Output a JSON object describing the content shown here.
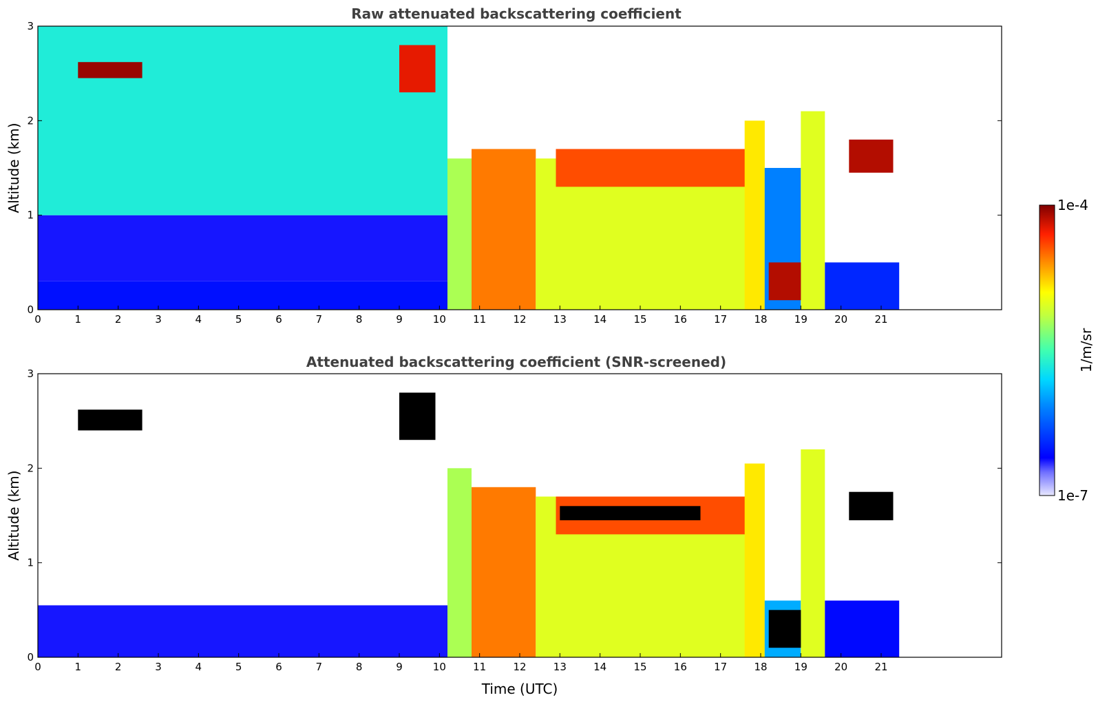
{
  "chart_data": [
    {
      "type": "heatmap",
      "title": "Raw attenuated backscattering coefficient",
      "xlabel": "",
      "ylabel": "Altitude (km)",
      "xlim": [
        0,
        24
      ],
      "ylim": [
        0,
        3
      ],
      "x_ticks": [
        "0",
        "1",
        "2",
        "3",
        "4",
        "5",
        "6",
        "7",
        "8",
        "9",
        "10",
        "11",
        "12",
        "13",
        "14",
        "15",
        "16",
        "17",
        "18",
        "19",
        "20",
        "21"
      ],
      "y_ticks": [
        "0",
        "1",
        "2",
        "3"
      ],
      "data_end_time": 21.45,
      "bands": [
        {
          "t": [
            0.0,
            10.2
          ],
          "z": [
            0.0,
            0.3
          ],
          "level": 0.15
        },
        {
          "t": [
            0.0,
            10.2
          ],
          "z": [
            0.3,
            1.0
          ],
          "level": 0.12
        },
        {
          "t": [
            0.0,
            10.2
          ],
          "z": [
            1.0,
            3.0
          ],
          "level": 0.45
        },
        {
          "t": [
            10.2,
            10.8
          ],
          "z": [
            0.0,
            1.6
          ],
          "level": 0.6
        },
        {
          "t": [
            10.8,
            12.4
          ],
          "z": [
            0.0,
            1.7
          ],
          "level": 0.82
        },
        {
          "t": [
            12.4,
            18.0
          ],
          "z": [
            0.0,
            1.6
          ],
          "level": 0.66
        },
        {
          "t": [
            12.9,
            17.9
          ],
          "z": [
            1.3,
            1.7
          ],
          "level": 0.86
        },
        {
          "t": [
            17.6,
            18.1
          ],
          "z": [
            0.0,
            2.0
          ],
          "level": 0.72
        },
        {
          "t": [
            18.1,
            19.0
          ],
          "z": [
            0.0,
            1.5
          ],
          "level": 0.3
        },
        {
          "t": [
            19.0,
            19.6
          ],
          "z": [
            0.0,
            2.1
          ],
          "level": 0.66
        },
        {
          "t": [
            19.6,
            21.45
          ],
          "z": [
            0.0,
            0.5
          ],
          "level": 0.18
        }
      ],
      "features": [
        {
          "t": [
            1.0,
            2.6
          ],
          "z": [
            2.45,
            2.62
          ],
          "level": 0.98
        },
        {
          "t": [
            9.0,
            9.9
          ],
          "z": [
            2.3,
            2.8
          ],
          "level": 0.92
        },
        {
          "t": [
            20.2,
            21.3
          ],
          "z": [
            1.45,
            1.8
          ],
          "level": 0.96
        },
        {
          "t": [
            18.2,
            19.0
          ],
          "z": [
            0.1,
            0.5
          ],
          "level": 0.96
        }
      ]
    },
    {
      "type": "heatmap",
      "title": "Attenuated backscattering coefficient (SNR-screened)",
      "xlabel": "Time (UTC)",
      "ylabel": "Altitude (km)",
      "xlim": [
        0,
        24
      ],
      "ylim": [
        0,
        3
      ],
      "x_ticks": [
        "0",
        "1",
        "2",
        "3",
        "4",
        "5",
        "6",
        "7",
        "8",
        "9",
        "10",
        "11",
        "12",
        "13",
        "14",
        "15",
        "16",
        "17",
        "18",
        "19",
        "20",
        "21"
      ],
      "y_ticks": [
        "0",
        "1",
        "2",
        "3"
      ],
      "data_end_time": 21.45,
      "bands": [
        {
          "t": [
            0.0,
            10.2
          ],
          "z": [
            0.0,
            0.55
          ],
          "level": 0.12
        },
        {
          "t": [
            10.2,
            10.8
          ],
          "z": [
            0.0,
            2.0
          ],
          "level": 0.6
        },
        {
          "t": [
            10.8,
            12.4
          ],
          "z": [
            0.0,
            1.8
          ],
          "level": 0.82
        },
        {
          "t": [
            12.4,
            18.0
          ],
          "z": [
            0.0,
            1.7
          ],
          "level": 0.66
        },
        {
          "t": [
            12.9,
            17.9
          ],
          "z": [
            1.3,
            1.7
          ],
          "level": 0.86
        },
        {
          "t": [
            17.6,
            18.1
          ],
          "z": [
            0.0,
            2.05
          ],
          "level": 0.72
        },
        {
          "t": [
            18.1,
            19.0
          ],
          "z": [
            0.0,
            0.6
          ],
          "level": 0.35
        },
        {
          "t": [
            19.0,
            19.6
          ],
          "z": [
            0.0,
            2.2
          ],
          "level": 0.66
        },
        {
          "t": [
            19.6,
            21.45
          ],
          "z": [
            0.0,
            0.6
          ],
          "level": 0.14
        }
      ],
      "features": [
        {
          "t": [
            1.0,
            2.6
          ],
          "z": [
            2.4,
            2.62
          ],
          "level": -1
        },
        {
          "t": [
            9.0,
            9.9
          ],
          "z": [
            2.3,
            2.8
          ],
          "level": -1
        },
        {
          "t": [
            13.0,
            16.5
          ],
          "z": [
            1.45,
            1.6
          ],
          "level": -1
        },
        {
          "t": [
            20.2,
            21.3
          ],
          "z": [
            1.45,
            1.75
          ],
          "level": -1
        },
        {
          "t": [
            18.2,
            19.0
          ],
          "z": [
            0.1,
            0.5
          ],
          "level": -1
        }
      ]
    }
  ],
  "colorbar": {
    "max_label": "1e-4",
    "min_label": "1e-7",
    "unit_label": "1/m/sr"
  }
}
